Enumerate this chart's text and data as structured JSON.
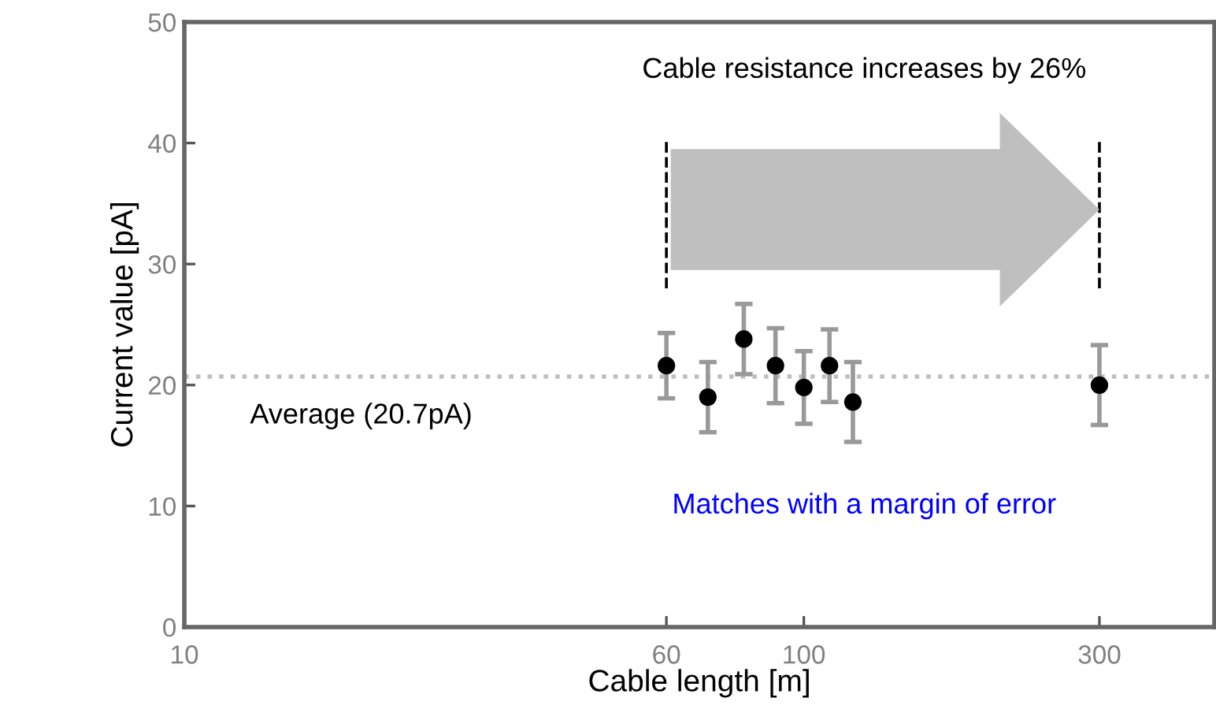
{
  "chart_data": {
    "type": "scatter",
    "xlabel": "Cable length [m]",
    "ylabel": "Current value [pA]",
    "x": [
      60,
      70,
      80,
      90,
      100,
      110,
      120,
      300
    ],
    "series": [
      {
        "color": "#000000",
        "values": [
          21.6,
          19.0,
          23.8,
          21.6,
          19.8,
          21.6,
          18.6,
          20.0
        ],
        "errors": [
          2.7,
          2.9,
          2.9,
          3.1,
          3.0,
          3.0,
          3.3,
          3.3
        ]
      }
    ],
    "marker": "circle",
    "log": "x",
    "xlim": [
      10,
      460
    ],
    "xticks": [
      10,
      60,
      100,
      300
    ],
    "ylim": [
      0,
      50
    ],
    "yticks": [
      0,
      10,
      20,
      30,
      40,
      50
    ],
    "grid": false,
    "ref_lines": [
      {
        "axis": "y",
        "value": 20.7,
        "label": "Average (20.7pA)",
        "color": "#bfbfbf",
        "line_style": "dotted"
      }
    ],
    "annotations": [
      "Cable resistance increases by 26%",
      "Matches with a margin of error"
    ]
  }
}
